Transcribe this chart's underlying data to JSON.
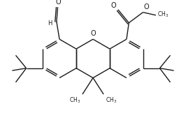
{
  "bg_color": "#ffffff",
  "line_color": "#1a1a1a",
  "line_width": 1.0,
  "figsize": [
    2.66,
    1.72
  ],
  "dpi": 100,
  "xlim": [
    -1.45,
    1.45
  ],
  "ylim": [
    -1.05,
    1.0
  ]
}
